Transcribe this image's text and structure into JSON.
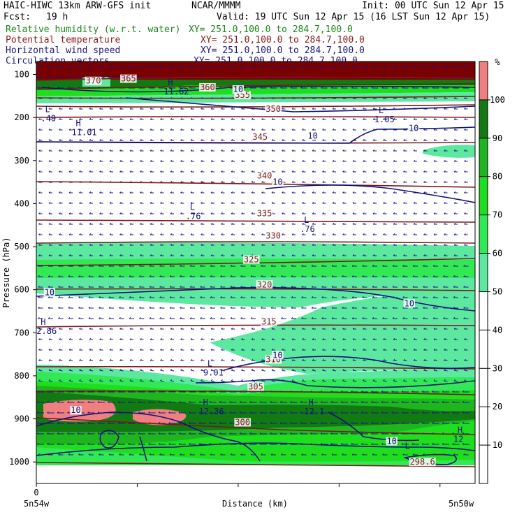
{
  "header": {
    "model": "HAIC-HIWC 13km ARW-GFS init",
    "org": "NCAR/MMMM",
    "init": "Init: 00 UTC Sun 12 Apr 15",
    "fcst_label": "Fcst:",
    "fcst_value": "19 h",
    "valid": "Valid: 19 UTC Sun 12 Apr 15 (16 LST Sun 12 Apr 15)",
    "fields": [
      {
        "name": "Relative humidity (w.r.t. water)",
        "xy": "XY= 251.0,100.0 to 284.7,100.0",
        "color": "#1a8a1a"
      },
      {
        "name": "Potential temperature",
        "xy": "XY= 251.0,100.0 to 284.7,100.0",
        "color": "#8b1a1a"
      },
      {
        "name": "Horizontal wind speed",
        "xy": "XY= 251.0,100.0 to 284.7,100.0",
        "color": "#1a1a80"
      },
      {
        "name": "Circulation vectors",
        "xy": "XY= 251.0,100.0 to 284.7,100.0",
        "color": "#1a1a80"
      }
    ]
  },
  "chart_data": {
    "type": "heatmap",
    "title": "",
    "xlabel": "Distance (km)",
    "ylabel": "Pressure (hPa)",
    "x_tick_labels": [
      "0"
    ],
    "x_endpoint_labels": [
      "5n54w",
      "5n50w"
    ],
    "y_ticks": [
      100,
      200,
      300,
      400,
      500,
      600,
      700,
      800,
      900,
      1000
    ],
    "ylim": [
      1050,
      70
    ],
    "colorbar": {
      "unit": "%",
      "ticks": [
        10,
        20,
        30,
        40,
        50,
        60,
        70,
        80,
        90,
        100
      ],
      "bands": [
        {
          "range": [
            50,
            60
          ],
          "color": "#5de8a0"
        },
        {
          "range": [
            60,
            70
          ],
          "color": "#32e854"
        },
        {
          "range": [
            70,
            80
          ],
          "color": "#1ede1e"
        },
        {
          "range": [
            80,
            90
          ],
          "color": "#1fb51f"
        },
        {
          "range": [
            90,
            100
          ],
          "color": "#127a12"
        },
        {
          "range": [
            100,
            110
          ],
          "color": "#f08080"
        }
      ]
    },
    "theta_labels": [
      {
        "text": "370",
        "p": 115,
        "xf": 0.13
      },
      {
        "text": "365",
        "p": 110,
        "xf": 0.21
      },
      {
        "text": "360",
        "p": 130,
        "xf": 0.39
      },
      {
        "text": "355",
        "p": 148,
        "xf": 0.47
      },
      {
        "text": "350",
        "p": 180,
        "xf": 0.54
      },
      {
        "text": "345",
        "p": 245,
        "xf": 0.51
      },
      {
        "text": "340",
        "p": 335,
        "xf": 0.52
      },
      {
        "text": "335",
        "p": 423,
        "xf": 0.52
      },
      {
        "text": "330",
        "p": 475,
        "xf": 0.54
      },
      {
        "text": "325",
        "p": 530,
        "xf": 0.49
      },
      {
        "text": "320",
        "p": 588,
        "xf": 0.52
      },
      {
        "text": "315",
        "p": 674,
        "xf": 0.53
      },
      {
        "text": "310",
        "p": 762,
        "xf": 0.54
      },
      {
        "text": "305",
        "p": 825,
        "xf": 0.5
      },
      {
        "text": "300",
        "p": 908,
        "xf": 0.47
      },
      {
        "text": "298.6",
        "p": 1000,
        "xf": 0.88
      }
    ],
    "wind_labels": [
      {
        "text": "10",
        "p": 135,
        "xf": 0.46
      },
      {
        "text": "10",
        "p": 225,
        "xf": 0.86
      },
      {
        "text": "10",
        "p": 243,
        "xf": 0.63
      },
      {
        "text": "10",
        "p": 350,
        "xf": 0.55
      },
      {
        "text": "10",
        "p": 606,
        "xf": 0.03
      },
      {
        "text": "10",
        "p": 632,
        "xf": 0.85
      },
      {
        "text": "10",
        "p": 752,
        "xf": 0.55
      },
      {
        "text": "10",
        "p": 880,
        "xf": 0.09
      },
      {
        "text": "10",
        "p": 952,
        "xf": 0.81
      }
    ],
    "extrema": [
      {
        "type": "H",
        "value": "11.62",
        "p": 125,
        "xf": 0.3
      },
      {
        "type": "L",
        "value": ".49",
        "p": 188,
        "xf": 0.02
      },
      {
        "type": "L",
        "value": "1.05",
        "p": 190,
        "xf": 0.78
      },
      {
        "type": "H",
        "value": "11.01",
        "p": 220,
        "xf": 0.09
      },
      {
        "type": "L",
        "value": ".76",
        "p": 415,
        "xf": 0.35
      },
      {
        "type": "L",
        "value": ".76",
        "p": 445,
        "xf": 0.61
      },
      {
        "type": "H",
        "value": "2.86",
        "p": 682,
        "xf": 0.01
      },
      {
        "type": "L",
        "value": "9.01",
        "p": 778,
        "xf": 0.39
      },
      {
        "type": "H",
        "value": "12.36",
        "p": 868,
        "xf": 0.38
      },
      {
        "type": "H",
        "value": "12.1",
        "p": 868,
        "xf": 0.62
      },
      {
        "type": "H",
        "value": "12",
        "p": 932,
        "xf": 0.96
      },
      {
        "type": "L",
        "value": "",
        "p": 970,
        "xf": 0.84
      }
    ]
  }
}
